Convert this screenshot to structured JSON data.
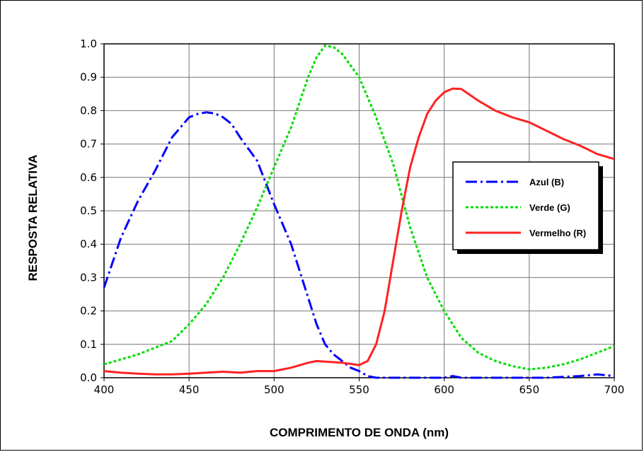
{
  "chart_data": {
    "type": "line",
    "xlabel": "COMPRIMENTO DE ONDA (nm)",
    "ylabel": "RESPOSTA RELATIVA",
    "xlim": [
      400,
      700
    ],
    "ylim": [
      0,
      1.0
    ],
    "x_ticks": [
      "400",
      "450",
      "500",
      "550",
      "600",
      "650",
      "700"
    ],
    "y_ticks": [
      "0.0",
      "0.1",
      "0.2",
      "0.3",
      "0.4",
      "0.5",
      "0.6",
      "0.7",
      "0.8",
      "0.9",
      "1.0"
    ],
    "grid": true,
    "legend_position": "right",
    "series": [
      {
        "name": "Azul (B)",
        "color": "#0000ff",
        "style": "dash-dot",
        "x": [
          400,
          410,
          420,
          430,
          440,
          450,
          455,
          460,
          465,
          470,
          475,
          480,
          490,
          500,
          510,
          520,
          525,
          530,
          535,
          540,
          545,
          550,
          555,
          560,
          570,
          580,
          600,
          605,
          610,
          620,
          640,
          660,
          680,
          690,
          700
        ],
        "y": [
          0.27,
          0.42,
          0.53,
          0.62,
          0.72,
          0.78,
          0.79,
          0.795,
          0.792,
          0.78,
          0.76,
          0.72,
          0.65,
          0.52,
          0.4,
          0.24,
          0.16,
          0.1,
          0.07,
          0.05,
          0.03,
          0.02,
          0.005,
          0.0,
          0.0,
          0.0,
          0.0,
          0.005,
          0.0,
          0.0,
          0.0,
          0.0,
          0.005,
          0.01,
          0.005
        ]
      },
      {
        "name": "Verde (G)",
        "color": "#00dd00",
        "style": "dotted",
        "x": [
          400,
          420,
          440,
          450,
          460,
          470,
          480,
          490,
          500,
          510,
          520,
          525,
          530,
          535,
          540,
          550,
          560,
          570,
          580,
          590,
          600,
          610,
          620,
          630,
          640,
          650,
          660,
          670,
          680,
          690,
          700
        ],
        "y": [
          0.04,
          0.07,
          0.11,
          0.16,
          0.22,
          0.3,
          0.4,
          0.51,
          0.63,
          0.75,
          0.9,
          0.96,
          0.995,
          0.99,
          0.97,
          0.9,
          0.78,
          0.64,
          0.45,
          0.3,
          0.2,
          0.12,
          0.075,
          0.05,
          0.035,
          0.025,
          0.03,
          0.04,
          0.055,
          0.075,
          0.095
        ]
      },
      {
        "name": "Vermelho (R)",
        "color": "#ff2222",
        "style": "solid",
        "x": [
          400,
          410,
          420,
          430,
          440,
          450,
          460,
          470,
          480,
          490,
          500,
          510,
          520,
          525,
          530,
          540,
          550,
          555,
          560,
          565,
          570,
          575,
          580,
          585,
          590,
          595,
          600,
          605,
          610,
          620,
          630,
          640,
          650,
          660,
          670,
          680,
          690,
          700
        ],
        "y": [
          0.02,
          0.015,
          0.012,
          0.01,
          0.01,
          0.012,
          0.015,
          0.018,
          0.015,
          0.02,
          0.02,
          0.03,
          0.045,
          0.05,
          0.048,
          0.045,
          0.038,
          0.05,
          0.1,
          0.2,
          0.35,
          0.5,
          0.63,
          0.72,
          0.79,
          0.83,
          0.855,
          0.866,
          0.865,
          0.83,
          0.8,
          0.78,
          0.765,
          0.74,
          0.715,
          0.695,
          0.67,
          0.655
        ]
      }
    ]
  }
}
